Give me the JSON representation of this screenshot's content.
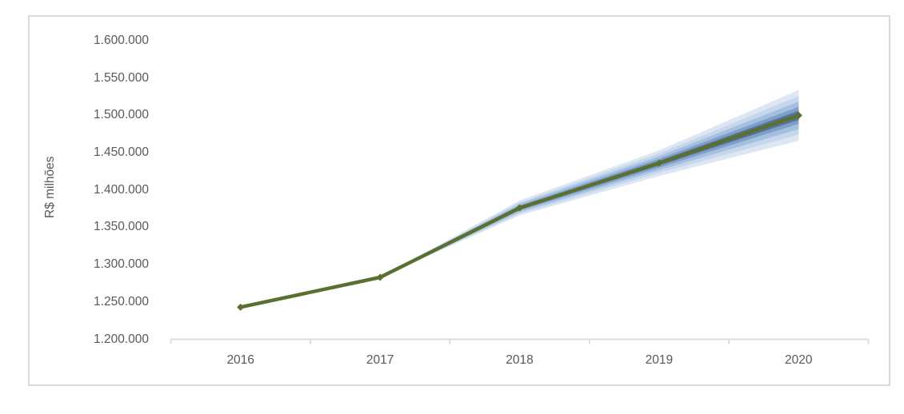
{
  "colors": {
    "background": "#ffffff",
    "chart_border": "#d9d9d9",
    "axis_line": "#d9d9d9",
    "tick_text": "#595959",
    "series_line": "#5a7030"
  },
  "chart_data": {
    "type": "line",
    "title": "",
    "xlabel": "",
    "ylabel": "R$ milhões",
    "categories": [
      "2016",
      "2017",
      "2018",
      "2019",
      "2020"
    ],
    "series": [
      {
        "name": "central-projection",
        "color": "#5a7030",
        "values": [
          1243000,
          1283000,
          1376000,
          1436000,
          1500000
        ]
      }
    ],
    "bands_outer_to_inner": [
      {
        "name": "confidence-band-outer",
        "color": "#dde7f3",
        "half_widths": [
          0,
          0,
          10000,
          17200,
          34000
        ]
      },
      {
        "name": "confidence-band-4",
        "color": "#c6d7ec",
        "half_widths": [
          0,
          0,
          7600,
          13000,
          25800
        ]
      },
      {
        "name": "confidence-band-3",
        "color": "#a4bfdf",
        "half_widths": [
          0,
          0,
          5500,
          9300,
          18500
        ]
      },
      {
        "name": "confidence-band-2",
        "color": "#7e9fc8",
        "half_widths": [
          0,
          0,
          3300,
          5800,
          11400
        ]
      },
      {
        "name": "confidence-band-inner",
        "color": "#567399",
        "half_widths": [
          0,
          0,
          1800,
          3100,
          6000
        ]
      }
    ],
    "ylim": [
      1200000,
      1600000
    ],
    "ytick_step": 50000,
    "ytick_labels": [
      "1.200.000",
      "1.250.000",
      "1.300.000",
      "1.350.000",
      "1.400.000",
      "1.450.000",
      "1.500.000",
      "1.550.000",
      "1.600.000"
    ],
    "grid": false,
    "legend": false
  }
}
